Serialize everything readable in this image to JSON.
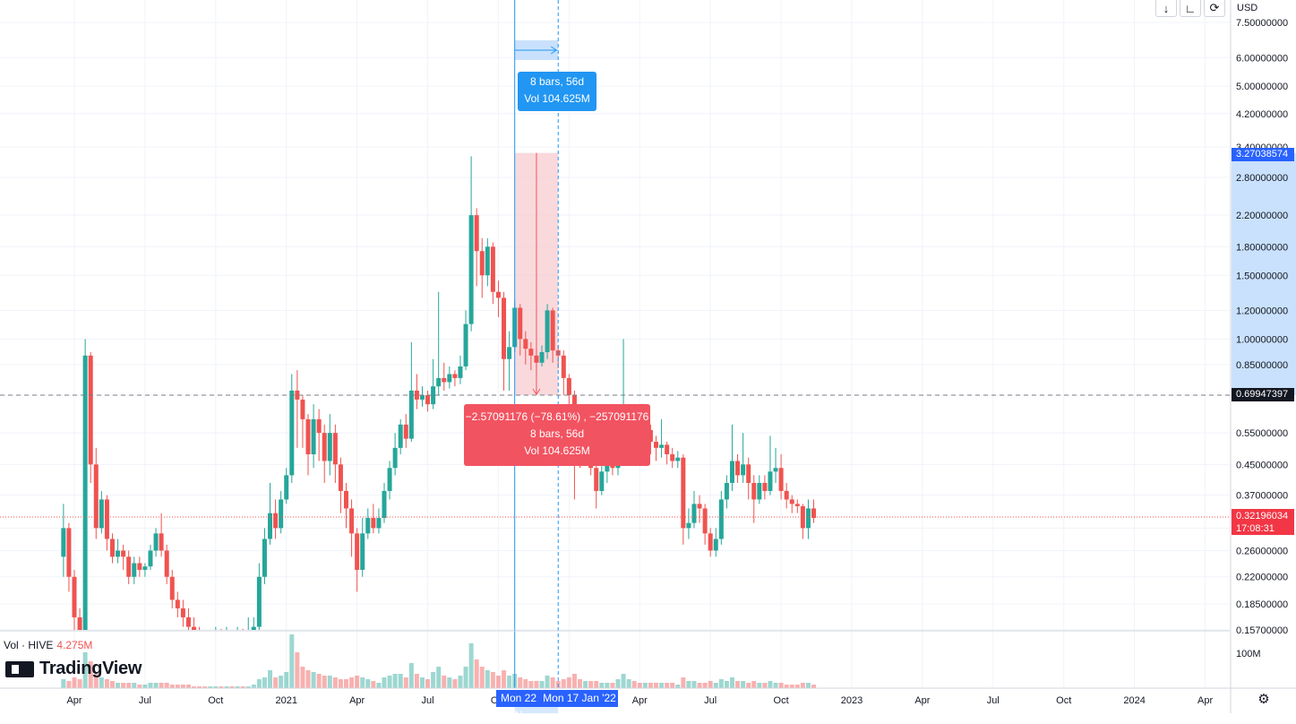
{
  "toolbar": {
    "currency": "USD",
    "buttons": [
      "arrow-down-icon",
      "collapse-icon",
      "reset-icon"
    ]
  },
  "volume_legend": {
    "label": "Vol · HIVE",
    "value": "4.275M"
  },
  "logo_text": "TradingView",
  "price_labels": {
    "measure_high": "3.27038574",
    "crosshair": "0.69947397",
    "last_price": "0.32196034",
    "countdown": "17:08:31"
  },
  "measure": {
    "range_line1": "8 bars, 56d",
    "range_line2": "Vol 104.625M",
    "drop_line1": "−2.57091176 (−78.61%) , −257091176",
    "drop_line2": "8 bars, 56d",
    "drop_line3": "Vol 104.625M",
    "start_date": "Mon 22 N",
    "end_date": "Mon 17 Jan '22"
  },
  "colors": {
    "up": "#26a69a",
    "down": "#ef5350",
    "measure_blue": "#2196f3",
    "measure_red": "#f25361"
  },
  "chart_data": {
    "type": "candlestick",
    "timeframe": "1W",
    "yscale": "log",
    "y_ticks": [
      "7.50000000",
      "6.00000000",
      "5.00000000",
      "4.20000000",
      "3.40000000",
      "2.80000000",
      "2.20000000",
      "1.80000000",
      "1.50000000",
      "1.20000000",
      "1.00000000",
      "0.85000000",
      "0.70000000",
      "0.55000000",
      "0.45000000",
      "0.37000000",
      "0.30000000",
      "0.26000000",
      "0.22000000",
      "0.18500000",
      "0.15700000"
    ],
    "y_tick_values": [
      7.5,
      6.0,
      5.0,
      4.2,
      3.4,
      2.8,
      2.2,
      1.8,
      1.5,
      1.2,
      1.0,
      0.85,
      0.7,
      0.55,
      0.45,
      0.37,
      0.3,
      0.26,
      0.22,
      0.185,
      0.157
    ],
    "vol_tick": "100M",
    "x_ticks": [
      "Apr",
      "Jul",
      "Oct",
      "2021",
      "Apr",
      "Jul",
      "Oct",
      "Jan '22",
      "Apr",
      "Jul",
      "Oct",
      "2023",
      "Apr",
      "Jul",
      "Oct",
      "2024",
      "Apr"
    ],
    "x_tick_weeks": [
      0,
      13,
      26,
      39,
      52,
      65,
      78,
      91,
      104,
      117,
      130,
      143,
      156,
      169,
      182,
      195,
      208
    ],
    "candles": [
      [
        0.25,
        0.3,
        0.35,
        0.22,
        5
      ],
      [
        0.3,
        0.22,
        0.31,
        0.2,
        4
      ],
      [
        0.22,
        0.17,
        0.23,
        0.15,
        6
      ],
      [
        0.17,
        0.12,
        0.18,
        0.1,
        5
      ],
      [
        0.12,
        0.9,
        1.0,
        0.11,
        20
      ],
      [
        0.9,
        0.45,
        0.92,
        0.4,
        15
      ],
      [
        0.45,
        0.3,
        0.5,
        0.28,
        8
      ],
      [
        0.3,
        0.36,
        0.38,
        0.29,
        6
      ],
      [
        0.36,
        0.28,
        0.37,
        0.26,
        5
      ],
      [
        0.28,
        0.25,
        0.29,
        0.24,
        4
      ],
      [
        0.25,
        0.26,
        0.28,
        0.24,
        3
      ],
      [
        0.26,
        0.25,
        0.27,
        0.23,
        3
      ],
      [
        0.25,
        0.22,
        0.26,
        0.21,
        3
      ],
      [
        0.22,
        0.24,
        0.25,
        0.21,
        3
      ],
      [
        0.24,
        0.23,
        0.25,
        0.22,
        2
      ],
      [
        0.23,
        0.235,
        0.24,
        0.22,
        2
      ],
      [
        0.235,
        0.26,
        0.27,
        0.23,
        3
      ],
      [
        0.26,
        0.29,
        0.3,
        0.25,
        3
      ],
      [
        0.29,
        0.26,
        0.33,
        0.25,
        3
      ],
      [
        0.26,
        0.22,
        0.27,
        0.21,
        3
      ],
      [
        0.22,
        0.19,
        0.23,
        0.18,
        2
      ],
      [
        0.19,
        0.18,
        0.2,
        0.17,
        2
      ],
      [
        0.18,
        0.17,
        0.19,
        0.16,
        2
      ],
      [
        0.17,
        0.16,
        0.18,
        0.155,
        2
      ],
      [
        0.16,
        0.155,
        0.17,
        0.15,
        1
      ],
      [
        0.155,
        0.15,
        0.16,
        0.145,
        1
      ],
      [
        0.15,
        0.148,
        0.155,
        0.14,
        1
      ],
      [
        0.148,
        0.15,
        0.155,
        0.14,
        1
      ],
      [
        0.15,
        0.152,
        0.16,
        0.145,
        1
      ],
      [
        0.152,
        0.15,
        0.158,
        0.145,
        1
      ],
      [
        0.15,
        0.153,
        0.16,
        0.145,
        1
      ],
      [
        0.153,
        0.151,
        0.157,
        0.146,
        1
      ],
      [
        0.151,
        0.154,
        0.16,
        0.147,
        1
      ],
      [
        0.154,
        0.152,
        0.158,
        0.148,
        1
      ],
      [
        0.152,
        0.155,
        0.17,
        0.148,
        1
      ],
      [
        0.155,
        0.16,
        0.17,
        0.15,
        2
      ],
      [
        0.16,
        0.22,
        0.24,
        0.155,
        5
      ],
      [
        0.22,
        0.28,
        0.3,
        0.21,
        6
      ],
      [
        0.28,
        0.33,
        0.4,
        0.27,
        10
      ],
      [
        0.33,
        0.3,
        0.36,
        0.28,
        6
      ],
      [
        0.3,
        0.36,
        0.38,
        0.29,
        7
      ],
      [
        0.36,
        0.42,
        0.44,
        0.35,
        9
      ],
      [
        0.42,
        0.72,
        0.8,
        0.4,
        30
      ],
      [
        0.72,
        0.68,
        0.82,
        0.5,
        20
      ],
      [
        0.68,
        0.6,
        0.7,
        0.5,
        12
      ],
      [
        0.6,
        0.48,
        0.62,
        0.42,
        10
      ],
      [
        0.48,
        0.6,
        0.66,
        0.44,
        9
      ],
      [
        0.6,
        0.55,
        0.64,
        0.46,
        8
      ],
      [
        0.55,
        0.46,
        0.58,
        0.4,
        7
      ],
      [
        0.46,
        0.55,
        0.62,
        0.42,
        7
      ],
      [
        0.55,
        0.45,
        0.58,
        0.4,
        6
      ],
      [
        0.45,
        0.38,
        0.47,
        0.33,
        5
      ],
      [
        0.38,
        0.34,
        0.4,
        0.3,
        5
      ],
      [
        0.34,
        0.29,
        0.36,
        0.25,
        6
      ],
      [
        0.29,
        0.23,
        0.3,
        0.2,
        7
      ],
      [
        0.23,
        0.29,
        0.32,
        0.22,
        6
      ],
      [
        0.29,
        0.32,
        0.34,
        0.28,
        5
      ],
      [
        0.32,
        0.3,
        0.35,
        0.29,
        4
      ],
      [
        0.3,
        0.32,
        0.34,
        0.29,
        3
      ],
      [
        0.32,
        0.38,
        0.4,
        0.31,
        6
      ],
      [
        0.38,
        0.44,
        0.46,
        0.36,
        7
      ],
      [
        0.44,
        0.5,
        0.55,
        0.42,
        8
      ],
      [
        0.5,
        0.58,
        0.6,
        0.48,
        8
      ],
      [
        0.58,
        0.53,
        0.62,
        0.5,
        6
      ],
      [
        0.53,
        0.72,
        0.98,
        0.52,
        14
      ],
      [
        0.72,
        0.68,
        0.8,
        0.64,
        8
      ],
      [
        0.68,
        0.7,
        0.74,
        0.65,
        6
      ],
      [
        0.7,
        0.66,
        0.72,
        0.63,
        5
      ],
      [
        0.66,
        0.74,
        0.88,
        0.64,
        9
      ],
      [
        0.74,
        0.78,
        1.35,
        0.7,
        12
      ],
      [
        0.78,
        0.76,
        0.86,
        0.72,
        7
      ],
      [
        0.76,
        0.8,
        0.84,
        0.73,
        6
      ],
      [
        0.8,
        0.78,
        0.82,
        0.74,
        5
      ],
      [
        0.78,
        0.84,
        0.9,
        0.75,
        7
      ],
      [
        0.84,
        1.1,
        1.2,
        0.82,
        12
      ],
      [
        1.1,
        2.2,
        3.2,
        1.05,
        25
      ],
      [
        2.2,
        1.75,
        2.3,
        1.4,
        16
      ],
      [
        1.75,
        1.5,
        1.9,
        1.3,
        12
      ],
      [
        1.5,
        1.8,
        1.9,
        1.4,
        10
      ],
      [
        1.8,
        1.35,
        1.85,
        1.25,
        9
      ],
      [
        1.35,
        1.3,
        1.45,
        1.15,
        7
      ],
      [
        1.3,
        0.88,
        1.35,
        0.72,
        10
      ],
      [
        0.88,
        0.95,
        1.05,
        0.72,
        7
      ],
      [
        0.95,
        1.22,
        1.28,
        0.92,
        8
      ],
      [
        1.22,
        1.0,
        1.25,
        0.9,
        6
      ],
      [
        1.0,
        0.94,
        1.05,
        0.85,
        5
      ],
      [
        0.94,
        0.9,
        0.98,
        0.82,
        4
      ],
      [
        0.9,
        0.86,
        0.94,
        0.8,
        4
      ],
      [
        0.86,
        0.92,
        0.96,
        0.84,
        4
      ],
      [
        0.92,
        1.2,
        1.25,
        0.88,
        7
      ],
      [
        1.2,
        0.93,
        1.22,
        0.86,
        6
      ],
      [
        0.93,
        0.9,
        0.96,
        0.83,
        4
      ],
      [
        0.9,
        0.78,
        0.93,
        0.7,
        5
      ],
      [
        0.78,
        0.7,
        0.8,
        0.6,
        6
      ],
      [
        0.7,
        0.52,
        0.72,
        0.36,
        8
      ],
      [
        0.52,
        0.48,
        0.54,
        0.44,
        5
      ],
      [
        0.48,
        0.52,
        0.56,
        0.45,
        4
      ],
      [
        0.52,
        0.44,
        0.53,
        0.42,
        4
      ],
      [
        0.44,
        0.38,
        0.46,
        0.34,
        4
      ],
      [
        0.38,
        0.43,
        0.46,
        0.37,
        3
      ],
      [
        0.43,
        0.45,
        0.48,
        0.4,
        3
      ],
      [
        0.45,
        0.44,
        0.47,
        0.42,
        3
      ],
      [
        0.44,
        0.5,
        0.57,
        0.42,
        5
      ],
      [
        0.5,
        0.58,
        1.0,
        0.46,
        8
      ],
      [
        0.58,
        0.6,
        0.64,
        0.52,
        5
      ],
      [
        0.6,
        0.54,
        0.62,
        0.5,
        4
      ],
      [
        0.54,
        0.52,
        0.56,
        0.5,
        3
      ],
      [
        0.52,
        0.56,
        0.6,
        0.5,
        3
      ],
      [
        0.56,
        0.52,
        0.58,
        0.48,
        3
      ],
      [
        0.52,
        0.5,
        0.54,
        0.46,
        3
      ],
      [
        0.5,
        0.51,
        0.6,
        0.47,
        3
      ],
      [
        0.51,
        0.48,
        0.52,
        0.45,
        3
      ],
      [
        0.48,
        0.46,
        0.5,
        0.44,
        3
      ],
      [
        0.46,
        0.47,
        0.49,
        0.44,
        2
      ],
      [
        0.47,
        0.3,
        0.48,
        0.27,
        6
      ],
      [
        0.3,
        0.31,
        0.34,
        0.28,
        4
      ],
      [
        0.31,
        0.35,
        0.38,
        0.3,
        4
      ],
      [
        0.35,
        0.34,
        0.37,
        0.31,
        3
      ],
      [
        0.34,
        0.29,
        0.35,
        0.27,
        3
      ],
      [
        0.29,
        0.26,
        0.3,
        0.25,
        4
      ],
      [
        0.26,
        0.28,
        0.3,
        0.25,
        3
      ],
      [
        0.28,
        0.36,
        0.38,
        0.27,
        5
      ],
      [
        0.36,
        0.4,
        0.42,
        0.34,
        4
      ],
      [
        0.4,
        0.46,
        0.58,
        0.38,
        6
      ],
      [
        0.46,
        0.42,
        0.48,
        0.4,
        4
      ],
      [
        0.42,
        0.45,
        0.55,
        0.4,
        4
      ],
      [
        0.45,
        0.4,
        0.47,
        0.36,
        3
      ],
      [
        0.4,
        0.36,
        0.42,
        0.31,
        4
      ],
      [
        0.36,
        0.4,
        0.42,
        0.35,
        3
      ],
      [
        0.4,
        0.38,
        0.42,
        0.36,
        3
      ],
      [
        0.38,
        0.43,
        0.54,
        0.37,
        4
      ],
      [
        0.43,
        0.44,
        0.5,
        0.4,
        3
      ],
      [
        0.44,
        0.38,
        0.48,
        0.36,
        3
      ],
      [
        0.38,
        0.36,
        0.4,
        0.34,
        2
      ],
      [
        0.36,
        0.35,
        0.37,
        0.33,
        2
      ],
      [
        0.35,
        0.345,
        0.36,
        0.33,
        2
      ],
      [
        0.345,
        0.3,
        0.35,
        0.28,
        3
      ],
      [
        0.3,
        0.34,
        0.36,
        0.28,
        3
      ],
      [
        0.34,
        0.32,
        0.36,
        0.31,
        2
      ]
    ]
  }
}
